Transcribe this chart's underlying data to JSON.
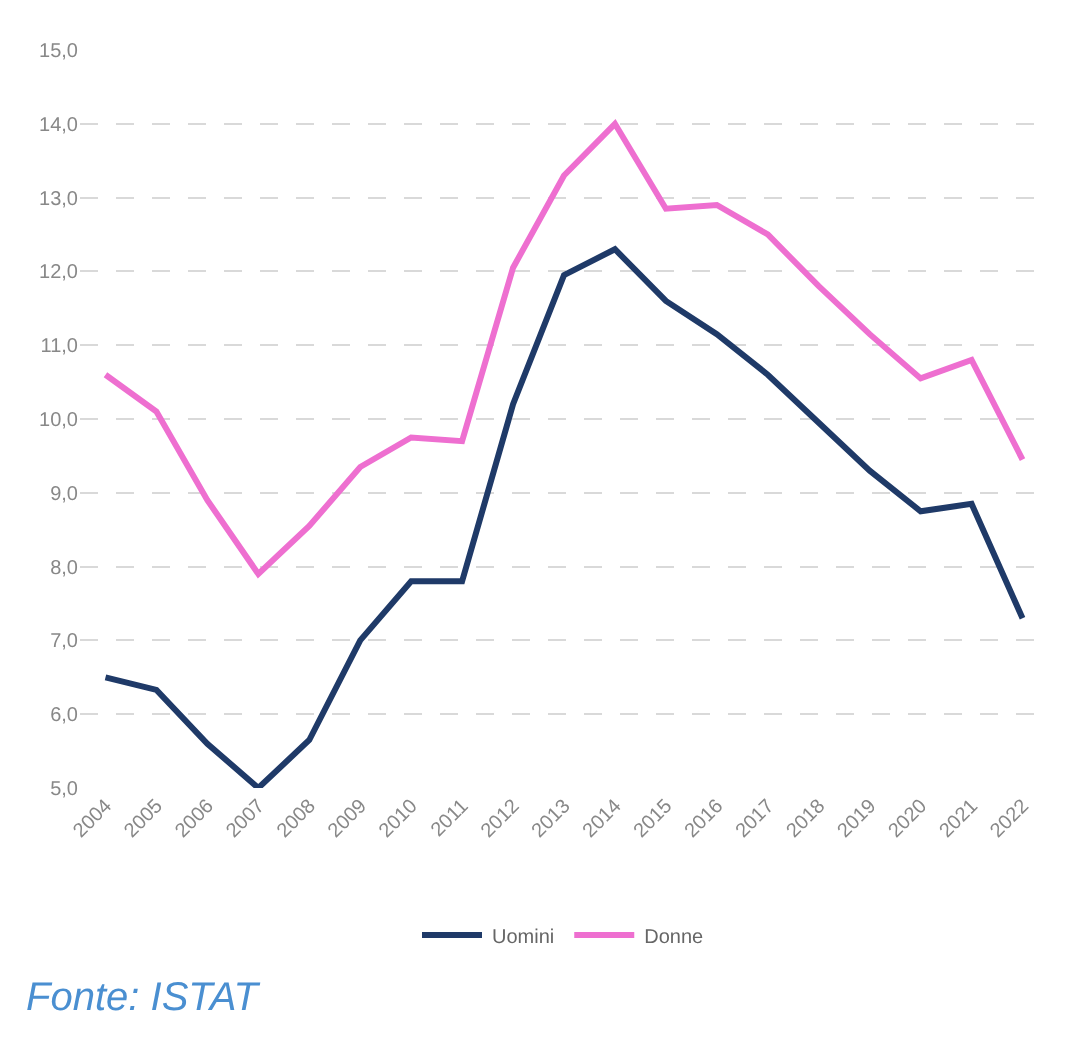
{
  "chart_data": {
    "type": "line",
    "categories": [
      "2004",
      "2005",
      "2006",
      "2007",
      "2008",
      "2009",
      "2010",
      "2011",
      "2012",
      "2013",
      "2014",
      "2015",
      "2016",
      "2017",
      "2018",
      "2019",
      "2020",
      "2021",
      "2022"
    ],
    "series": [
      {
        "name": "Uomini",
        "color": "#1f3a68",
        "values": [
          6.5,
          6.33,
          5.6,
          5.0,
          5.65,
          7.0,
          7.8,
          7.8,
          10.2,
          11.95,
          12.3,
          11.6,
          11.15,
          10.6,
          9.95,
          9.3,
          8.75,
          8.85,
          7.3
        ]
      },
      {
        "name": "Donne",
        "color": "#ee6fd0",
        "values": [
          10.6,
          10.1,
          8.9,
          7.9,
          8.55,
          9.35,
          9.75,
          9.7,
          12.05,
          13.3,
          14.0,
          12.85,
          12.9,
          12.5,
          11.8,
          11.15,
          10.55,
          10.8,
          9.45
        ]
      }
    ],
    "ylim": [
      5,
      15
    ],
    "yticks": [
      {
        "value": 5,
        "label": "5,0"
      },
      {
        "value": 6,
        "label": "6,0"
      },
      {
        "value": 7,
        "label": "7,0"
      },
      {
        "value": 8,
        "label": "8,0"
      },
      {
        "value": 9,
        "label": "9,0"
      },
      {
        "value": 10,
        "label": "10,0"
      },
      {
        "value": 11,
        "label": "11,0"
      },
      {
        "value": 12,
        "label": "12,0"
      },
      {
        "value": 13,
        "label": "13,0"
      },
      {
        "value": 14,
        "label": "14,0"
      },
      {
        "value": 15,
        "label": "15,0"
      }
    ],
    "grid": "y",
    "legend": "bottom",
    "marker": "none",
    "line_style": "solid",
    "annotations": [
      "Fonte: ISTAT"
    ]
  }
}
